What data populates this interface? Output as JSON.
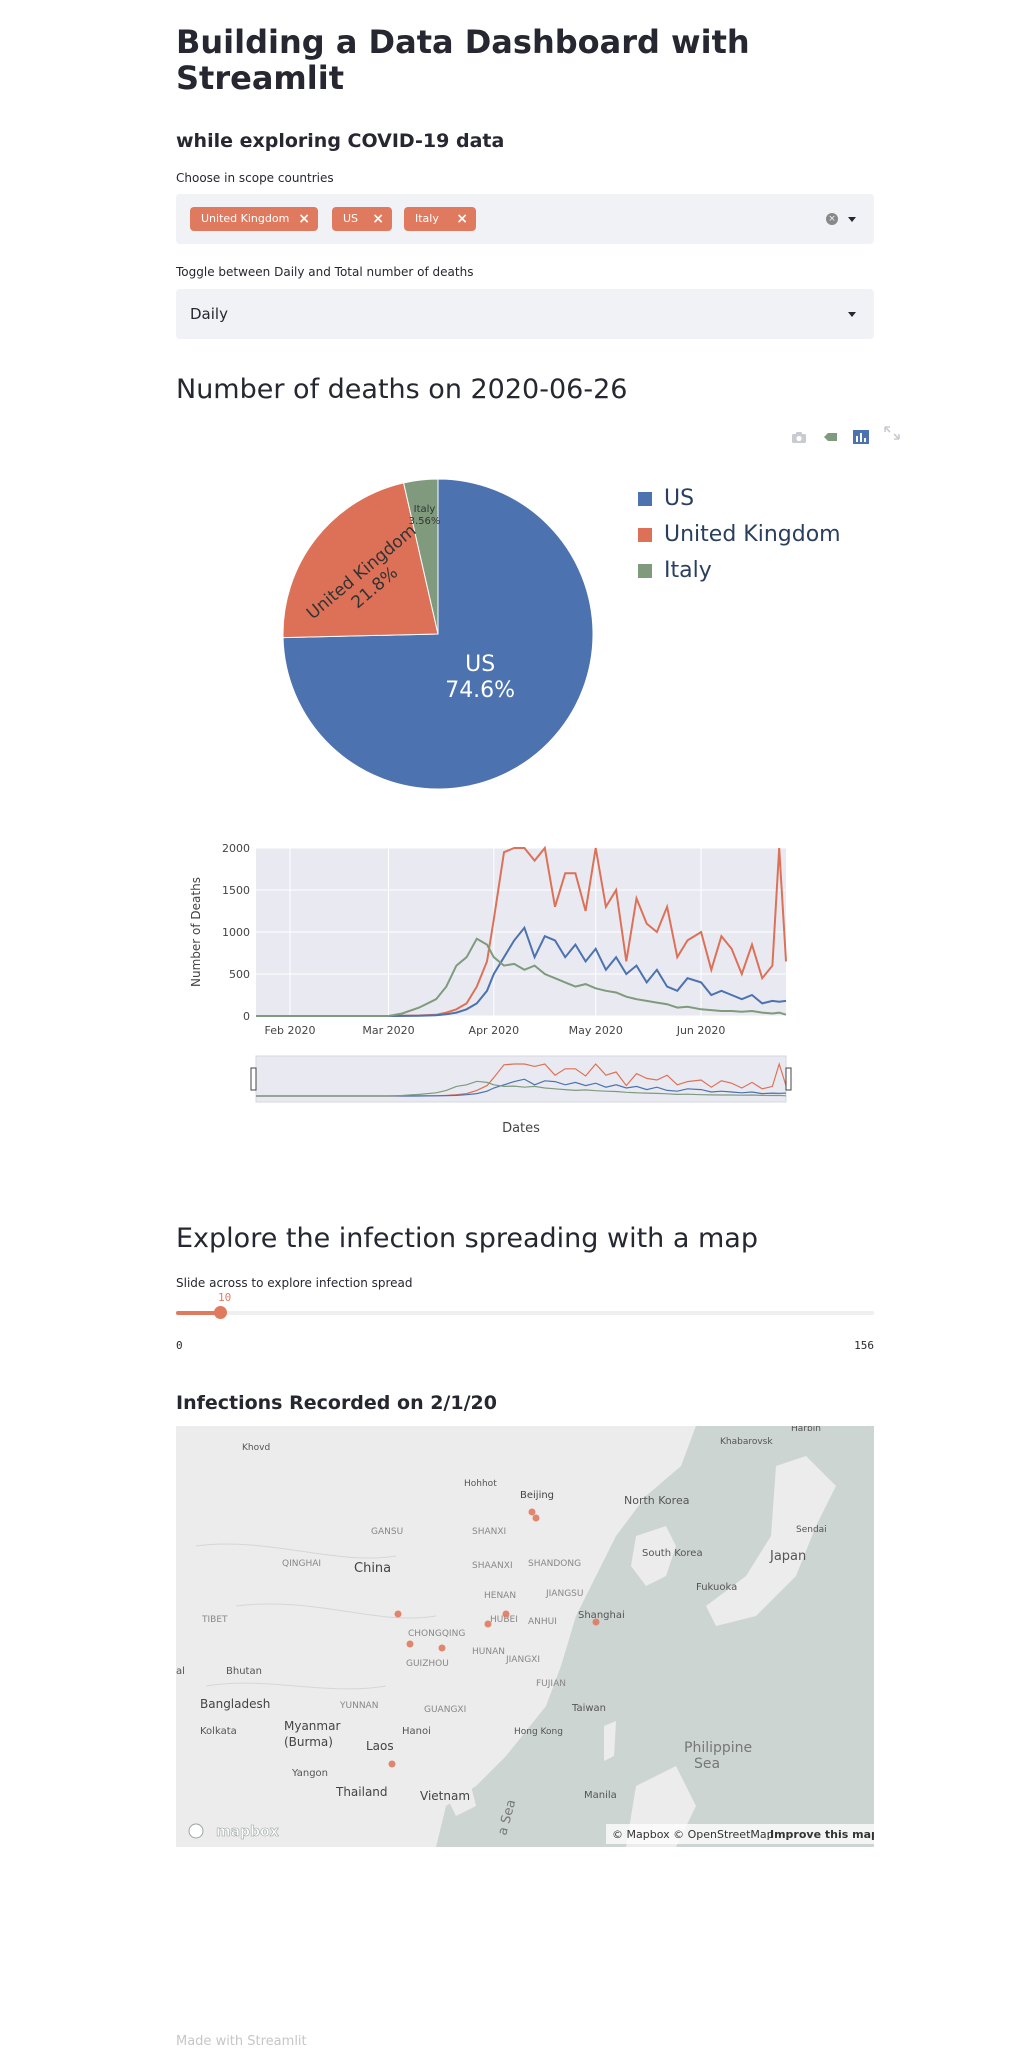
{
  "header": {
    "title": "Building a Data Dashboard with Streamlit",
    "subtitle": "while exploring COVID-19 data"
  },
  "countries_select": {
    "label": "Choose in scope countries",
    "tags": [
      "United Kingdom",
      "US",
      "Italy"
    ]
  },
  "toggle_select": {
    "label": "Toggle between Daily and Total number of deaths",
    "value": "Daily"
  },
  "deaths_section": {
    "heading": "Number of deaths on 2020-06-26"
  },
  "colors": {
    "us": "#4c72b0",
    "uk": "#dd7158",
    "italy": "#7f9a7d",
    "accent": "#e07a5f"
  },
  "icons": [
    "camera-icon",
    "tag-icon",
    "bar-chart-icon",
    "expand-icon",
    "clear-icon",
    "chevron-down-icon",
    "mapbox-logo"
  ],
  "chart_data": [
    {
      "type": "pie",
      "labels": [
        "US",
        "United Kingdom",
        "Italy"
      ],
      "values": [
        74.6,
        21.8,
        3.56
      ],
      "value_labels": [
        "74.6%",
        "21.8%",
        "3.56%"
      ],
      "legend": [
        "US",
        "United Kingdom",
        "Italy"
      ],
      "legend_position": "right"
    },
    {
      "type": "line",
      "xlabel": "Dates",
      "ylabel": "Number of Deaths",
      "x_ticks": [
        "Feb 2020",
        "Mar 2020",
        "Apr 2020",
        "May 2020",
        "Jun 2020"
      ],
      "y_ticks": [
        "0",
        "500",
        "1000",
        "1500",
        "2000"
      ],
      "ylim": [
        0,
        2000
      ],
      "x_range": [
        "2020-01-22",
        "2020-06-26"
      ],
      "grid": true,
      "range_slider": true,
      "x": [
        "2020-01-22",
        "2020-02-01",
        "2020-02-15",
        "2020-03-01",
        "2020-03-05",
        "2020-03-10",
        "2020-03-15",
        "2020-03-18",
        "2020-03-21",
        "2020-03-24",
        "2020-03-27",
        "2020-03-30",
        "2020-04-01",
        "2020-04-04",
        "2020-04-07",
        "2020-04-10",
        "2020-04-13",
        "2020-04-16",
        "2020-04-19",
        "2020-04-22",
        "2020-04-25",
        "2020-04-28",
        "2020-05-01",
        "2020-05-04",
        "2020-05-07",
        "2020-05-10",
        "2020-05-13",
        "2020-05-16",
        "2020-05-19",
        "2020-05-22",
        "2020-05-25",
        "2020-05-28",
        "2020-06-01",
        "2020-06-04",
        "2020-06-07",
        "2020-06-10",
        "2020-06-13",
        "2020-06-16",
        "2020-06-19",
        "2020-06-22",
        "2020-06-24",
        "2020-06-26"
      ],
      "series": [
        {
          "name": "United Kingdom",
          "values": [
            0,
            0,
            0,
            0,
            2,
            6,
            14,
            40,
            80,
            150,
            350,
            650,
            1150,
            1950,
            2000,
            2000,
            1850,
            2000,
            1300,
            1700,
            1700,
            1250,
            2000,
            1300,
            1500,
            650,
            1400,
            1100,
            1000,
            1300,
            700,
            900,
            1000,
            550,
            950,
            800,
            500,
            850,
            450,
            600,
            2000,
            650
          ]
        },
        {
          "name": "US",
          "values": [
            0,
            0,
            0,
            0,
            1,
            2,
            10,
            20,
            40,
            80,
            150,
            300,
            500,
            700,
            900,
            1050,
            700,
            950,
            900,
            700,
            850,
            650,
            800,
            550,
            700,
            500,
            600,
            400,
            550,
            350,
            300,
            450,
            400,
            250,
            300,
            250,
            200,
            250,
            150,
            180,
            170,
            180
          ]
        },
        {
          "name": "Italy",
          "values": [
            0,
            0,
            0,
            0,
            30,
            100,
            200,
            350,
            600,
            700,
            920,
            850,
            700,
            600,
            620,
            550,
            600,
            500,
            450,
            400,
            350,
            380,
            330,
            300,
            280,
            230,
            200,
            180,
            160,
            140,
            100,
            110,
            80,
            70,
            60,
            60,
            50,
            60,
            40,
            30,
            40,
            15
          ]
        }
      ]
    }
  ],
  "map_section": {
    "heading": "Explore the infection spreading with a map",
    "slider_label": "Slide across to explore infection spread",
    "slider_value": "10",
    "slider_min": "0",
    "slider_max": "156",
    "map_title": "Infections Recorded on 2/1/20",
    "place_labels": [
      "Khabarovsk",
      "Khovd",
      "Hohhot",
      "Beijing",
      "North Korea",
      "Sendai",
      "SHANXI",
      "GANSU",
      "SHAANXI",
      "SHANDONG",
      "QINGHAI",
      "China",
      "South Korea",
      "Japan",
      "HENAN",
      "JIANGSU",
      "Fukuoka",
      "HUBEI",
      "ANHUI",
      "Shanghai",
      "TIBET",
      "CHONGQING",
      "HUNAN",
      "JIANGXI",
      "GUIZHOU",
      "Bhutan",
      "FUJIAN",
      "Bangladesh",
      "YUNNAN",
      "GUANGXI",
      "Taiwan",
      "Kolkata",
      "Myanmar",
      "(Burma)",
      "Hanoi",
      "Hong Kong",
      "Philippine",
      "Sea",
      "Laos",
      "Yangon",
      "Thailand",
      "Vietnam",
      "Manila",
      "Harbin",
      "a Sea",
      "al"
    ],
    "attribution": "© Mapbox © OpenStreetMap",
    "improve_link": "Improve this map",
    "logo_text": "mapbox"
  },
  "footer": {
    "text": "Made with Streamlit"
  }
}
